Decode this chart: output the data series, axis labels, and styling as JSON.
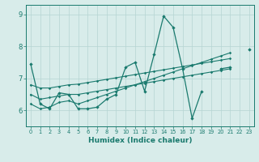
{
  "xlabel": "Humidex (Indice chaleur)",
  "bg_color": "#d8ecea",
  "line_color": "#1a7a6e",
  "grid_color": "#b5d5d2",
  "xlim": [
    -0.5,
    23.5
  ],
  "ylim": [
    5.5,
    9.3
  ],
  "yticks": [
    6,
    7,
    8,
    9
  ],
  "xticks": [
    0,
    1,
    2,
    3,
    4,
    5,
    6,
    7,
    8,
    9,
    10,
    11,
    12,
    13,
    14,
    15,
    16,
    17,
    18,
    19,
    20,
    21,
    22,
    23
  ],
  "series": [
    [
      7.45,
      6.2,
      6.05,
      6.55,
      6.5,
      6.05,
      6.05,
      6.1,
      6.35,
      6.5,
      7.35,
      7.5,
      6.6,
      7.75,
      8.95,
      8.6,
      7.3,
      5.75,
      6.6,
      null,
      7.3,
      7.35,
      null,
      7.9
    ],
    [
      6.2,
      6.05,
      6.1,
      6.25,
      6.3,
      6.2,
      6.3,
      6.4,
      6.5,
      6.6,
      6.7,
      6.8,
      6.9,
      7.0,
      7.1,
      7.2,
      7.3,
      7.4,
      7.5,
      7.6,
      7.7,
      7.8,
      null,
      null
    ],
    [
      6.5,
      6.35,
      6.4,
      6.45,
      6.5,
      6.5,
      6.55,
      6.6,
      6.65,
      6.7,
      6.75,
      6.8,
      6.85,
      6.9,
      6.95,
      7.0,
      7.05,
      7.1,
      7.15,
      7.2,
      7.25,
      7.3,
      null,
      null
    ],
    [
      6.8,
      6.7,
      6.7,
      6.75,
      6.8,
      6.82,
      6.87,
      6.92,
      6.97,
      7.02,
      7.07,
      7.12,
      7.17,
      7.22,
      7.27,
      7.32,
      7.37,
      7.42,
      7.47,
      7.52,
      7.57,
      7.62,
      null,
      7.9
    ]
  ]
}
